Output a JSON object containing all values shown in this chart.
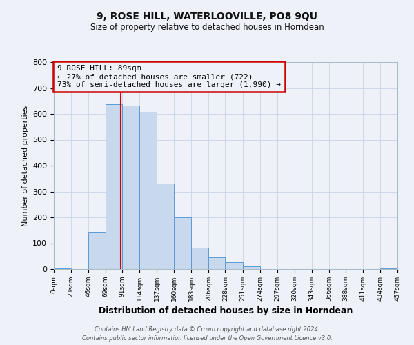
{
  "title": "9, ROSE HILL, WATERLOOVILLE, PO8 9QU",
  "subtitle": "Size of property relative to detached houses in Horndean",
  "xlabel": "Distribution of detached houses by size in Horndean",
  "ylabel": "Number of detached properties",
  "bin_edges": [
    0,
    23,
    46,
    69,
    91,
    114,
    137,
    160,
    183,
    206,
    228,
    251,
    274,
    297,
    320,
    343,
    366,
    388,
    411,
    434,
    457
  ],
  "bin_labels": [
    "0sqm",
    "23sqm",
    "46sqm",
    "69sqm",
    "91sqm",
    "114sqm",
    "137sqm",
    "160sqm",
    "183sqm",
    "206sqm",
    "228sqm",
    "251sqm",
    "274sqm",
    "297sqm",
    "320sqm",
    "343sqm",
    "366sqm",
    "388sqm",
    "411sqm",
    "434sqm",
    "457sqm"
  ],
  "counts": [
    2,
    0,
    143,
    638,
    631,
    608,
    331,
    199,
    83,
    46,
    27,
    12,
    0,
    0,
    0,
    0,
    0,
    0,
    0,
    3
  ],
  "bar_color": "#c9d9ed",
  "bar_edge_color": "#5b9bd5",
  "property_value": 89,
  "ann_label1": "9 ROSE HILL: 89sqm",
  "ann_label2": "← 27% of detached houses are smaller (722)",
  "ann_label3": "73% of semi-detached houses are larger (1,990) →",
  "vline_color": "#cc0000",
  "annotation_box_edge": "#cc0000",
  "ylim": [
    0,
    800
  ],
  "yticks": [
    0,
    100,
    200,
    300,
    400,
    500,
    600,
    700,
    800
  ],
  "grid_color": "#c8d4e8",
  "bg_color": "#eef2f8",
  "footer1": "Contains HM Land Registry data © Crown copyright and database right 2024.",
  "footer2": "Contains public sector information licensed under the Open Government Licence v3.0."
}
